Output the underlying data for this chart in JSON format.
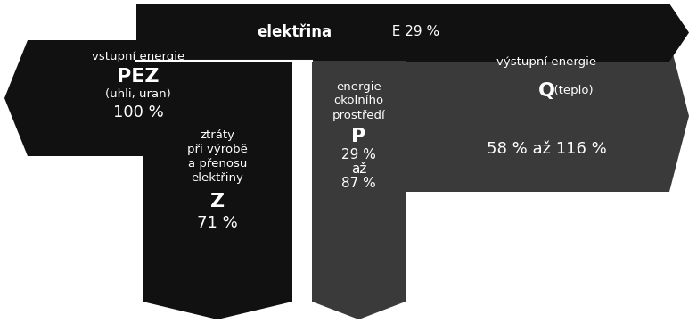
{
  "bg_color": "#ffffff",
  "dark_color": "#111111",
  "medium_dark": "#3a3a3a",
  "text_color": "#ffffff",
  "fig_width": 7.82,
  "fig_height": 3.62,
  "left_arrow": {
    "label_top": "vstupní energie",
    "label_main_bold": "PEZ",
    "label_main_small": " (uhli, uran)",
    "label_pct": "100 %"
  },
  "top_arrow": {
    "label_bold": "elektřina",
    "label_rest": "  E 29 %"
  },
  "right_arrow": {
    "label_top": "výstupní energie",
    "label_main_bold": "Q",
    "label_main_small": " (teplo)",
    "label_pct": "58 % až 116 %"
  },
  "bottom_left": {
    "line1": "ztráty",
    "line2": "při výrobě",
    "line3": "a přenosu",
    "line4": "elektřiny",
    "label_main": "Z",
    "label_pct": "71 %"
  },
  "bottom_right": {
    "line1": "energie",
    "line2": "okolního",
    "line3": "prostředí",
    "label_main": "P",
    "line4": "29 %",
    "line5": "až",
    "line6": "87 %"
  }
}
